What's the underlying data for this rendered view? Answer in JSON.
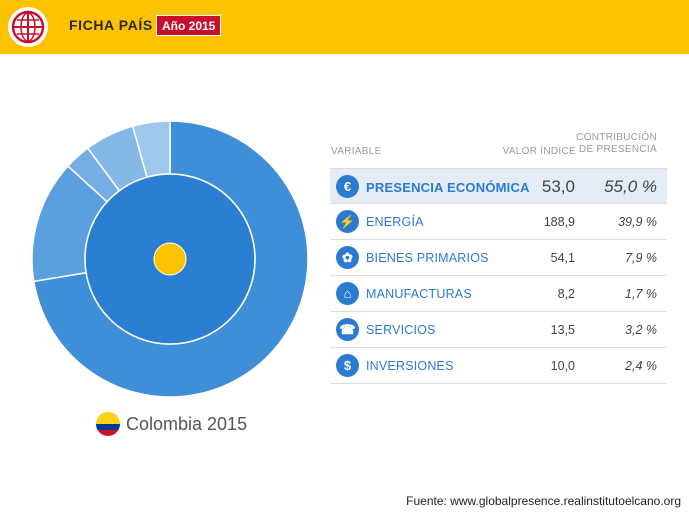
{
  "header": {
    "logo_icon": "globe-grid-icon",
    "title": "FICHA PAÍS",
    "year_badge": "Año 2015",
    "bg_color": "#fdc300",
    "badge_color": "#c8102e"
  },
  "chart": {
    "country_label": "Colombia 2015",
    "flag_icon": "colombia-flag-icon",
    "inner_color": "#2a7fd2",
    "outer_segments": [
      {
        "name": "Energía",
        "value": 39.9,
        "color": "#3f8ed8"
      },
      {
        "name": "Bienes primarios",
        "value": 7.9,
        "color": "#5a9fde"
      },
      {
        "name": "Manufacturas",
        "value": 1.7,
        "color": "#74aee3"
      },
      {
        "name": "Servicios",
        "value": 3.2,
        "color": "#86b8e6"
      },
      {
        "name": "Inversiones",
        "value": 2.4,
        "color": "#9fc7ec"
      }
    ]
  },
  "table": {
    "headers": {
      "variable": "VARIABLE",
      "value": "VALOR ÍNDICE",
      "contribution_line1": "CONTRIBUCIÓN",
      "contribution_line2": "DE PRESENCIA"
    },
    "rows": [
      {
        "icon": "euro-icon",
        "glyph": "€",
        "label": "PRESENCIA ECONÓMICA",
        "value": "53,0",
        "contribution": "55,0 %"
      },
      {
        "icon": "energy-tower-icon",
        "glyph": "⚡",
        "label": "ENERGÍA",
        "value": "188,9",
        "contribution": "39,9 %"
      },
      {
        "icon": "wheat-icon",
        "glyph": "✿",
        "label": "BIENES PRIMARIOS",
        "value": "54,1",
        "contribution": "7,9 %"
      },
      {
        "icon": "factory-icon",
        "glyph": "⌂",
        "label": "MANUFACTURAS",
        "value": "8,2",
        "contribution": "1,7 %"
      },
      {
        "icon": "services-icon",
        "glyph": "☎",
        "label": "SERVICIOS",
        "value": "13,5",
        "contribution": "3,2 %"
      },
      {
        "icon": "investments-icon",
        "glyph": "$",
        "label": "INVERSIONES",
        "value": "10,0",
        "contribution": "2,4 %"
      }
    ]
  },
  "footer": {
    "source": "Fuente: www.globalpresence.realinstitutoelcano.org"
  }
}
